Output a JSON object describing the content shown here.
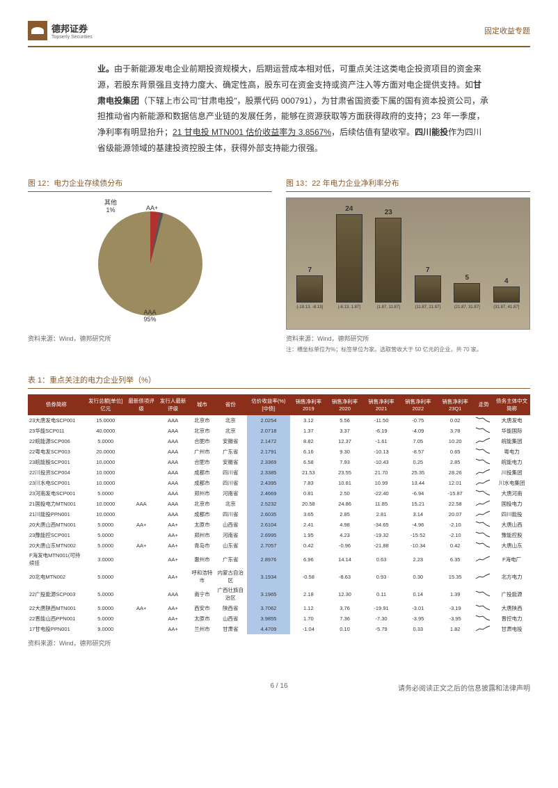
{
  "header": {
    "company_name": "德邦证券",
    "company_sub": "Topserly Securities",
    "doc_type": "固定收益专题"
  },
  "body": {
    "para1_prefix": "业。",
    "para1_text": "由于新能源发电企业前期投资规模大，后期运营成本相对低，可重点关注这类电企投资项目的资金来源，若股东背景强且支持力度大、确定性高，股东可在资金支持或资产注入等方面对电企提供支持。如",
    "para1_bold1": "甘肃电投集团",
    "para1_text2": "（下辖上市公司\"甘肃电投\"，股票代码 000791），为甘肃省国资委下属的国有资本投资公司，承担推动省内新能源和数据信息产业链的发展任务，能够在资源获取等方面获得政府的支持；23 年一季度，净利率有明显抬升；",
    "para1_underline": "21 甘电投 MTN001 估价收益率为 3.8567%",
    "para1_text3": "，后续估值有望收窄。",
    "para1_bold2": "四川能投",
    "para1_text4": "作为四川省级能源领域的基建投资控股主体，获得外部支持能力很强。"
  },
  "chart12": {
    "title": "图 12：电力企业存续债分布",
    "source": "资料来源：Wind，德邦研究所",
    "slices": [
      {
        "label": "AA+",
        "value": 3,
        "color": "#b0312e"
      },
      {
        "label": "其他",
        "value": 1,
        "color": "#555"
      },
      {
        "label": "AAA",
        "value": 95,
        "color": "#9b8b5e"
      }
    ]
  },
  "chart13": {
    "title": "图 13：22 年电力企业净利率分布",
    "source": "资料来源：Wind，德邦研究所",
    "note": "注：横坐标单位为%；标签单位为家。选取营收大于 50 亿元的企业，共 70 家。",
    "categories": [
      "(-18.13, -8.13]",
      "(-8.13, 1.87]",
      "(1.87, 11.87]",
      "(11.87, 21.87]",
      "(21.87, 31.87]",
      "(31.87, 41.87]"
    ],
    "values": [
      7,
      24,
      23,
      7,
      5,
      4
    ],
    "ymax": 25,
    "bar_color": "#4a3f28",
    "background_color": "#a89a7e"
  },
  "table1": {
    "title": "表 1：重点关注的电力企业列举（%）",
    "source": "资料来源：Wind，德邦研究所",
    "columns": [
      "债券简称",
      "发行总额[单位]亿元",
      "最新债项评级",
      "发行人最新评级",
      "城市",
      "省份",
      "估价收益率(%)[中债]",
      "销售净利率 2019",
      "销售净利率 2020",
      "销售净利率 2021",
      "销售净利率 2022",
      "销售净利率 23Q1",
      "走势",
      "债务主体中文简称"
    ],
    "rows": [
      [
        "23大唐发电SCP001",
        "15.0000",
        "",
        "AAA",
        "北京市",
        "北京",
        "2.0254",
        "3.12",
        "5.56",
        "-11.50",
        "-0.75",
        "0.02",
        "down",
        "大唐发电"
      ],
      [
        "23华能SCP011",
        "40.0000",
        "",
        "AAA",
        "北京市",
        "北京",
        "2.0718",
        "1.37",
        "3.37",
        "-6.19",
        "-4.09",
        "3.78",
        "down",
        "华能国际"
      ],
      [
        "22皖能源SCP006",
        "5.0000",
        "",
        "AAA",
        "合肥市",
        "安徽省",
        "2.1472",
        "8.82",
        "12.37",
        "-1.61",
        "7.05",
        "10.20",
        "up",
        "皖能集团"
      ],
      [
        "22粤电发SCP003",
        "20.0000",
        "",
        "AAA",
        "广州市",
        "广东省",
        "2.1791",
        "6.16",
        "9.30",
        "-10.13",
        "-8.57",
        "0.65",
        "down",
        "粤电力"
      ],
      [
        "23皖能股SCP001",
        "10.0000",
        "",
        "AAA",
        "合肥市",
        "安徽省",
        "2.3369",
        "6.58",
        "7.93",
        "-10.43",
        "0.25",
        "2.85",
        "down",
        "皖能电力"
      ],
      [
        "22川投资SCP004",
        "10.0000",
        "",
        "AAA",
        "成都市",
        "四川省",
        "2.3385",
        "21.53",
        "23.55",
        "21.70",
        "25.35",
        "28.26",
        "up",
        "川投集团"
      ],
      [
        "23川水电SCP001",
        "10.0000",
        "",
        "AAA",
        "成都市",
        "四川省",
        "2.4395",
        "7.83",
        "10.81",
        "10.99",
        "13.44",
        "12.01",
        "up",
        "川水电集团"
      ],
      [
        "23河南发电SCP001",
        "5.0000",
        "",
        "AAA",
        "郑州市",
        "河南省",
        "2.4669",
        "0.81",
        "2.50",
        "-22.40",
        "-6.94",
        "-15.87",
        "down",
        "大唐河南"
      ],
      [
        "21国投电力MTN001",
        "10.0000",
        "AAA",
        "AAA",
        "北京市",
        "北京",
        "2.5232",
        "20.58",
        "24.86",
        "11.85",
        "15.21",
        "22.58",
        "up",
        "国投电力"
      ],
      [
        "21川能投PPN001",
        "10.0000",
        "",
        "AAA",
        "成都市",
        "四川省",
        "2.6035",
        "3.65",
        "2.85",
        "2.81",
        "3.14",
        "20.07",
        "up",
        "四川能投"
      ],
      [
        "20大唐山西MTN001",
        "5.0000",
        "AA+",
        "AA+",
        "太原市",
        "山西省",
        "2.6104",
        "2.41",
        "4.98",
        "-34.65",
        "-4.96",
        "-2.10",
        "down",
        "大唐山西"
      ],
      [
        "23豫能控SCP001",
        "5.0000",
        "",
        "AA+",
        "郑州市",
        "河南省",
        "2.6995",
        "1.95",
        "4.23",
        "-19.32",
        "-15.52",
        "-2.10",
        "down",
        "豫能控股"
      ],
      [
        "20大唐山东MTN002",
        "5.0000",
        "AA+",
        "AA+",
        "青岛市",
        "山东省",
        "2.7057",
        "0.42",
        "-0.96",
        "-21.88",
        "-10.34",
        "0.42",
        "down",
        "大唐山东"
      ],
      [
        "F海发电MTN001(可持续挂",
        "3.0000",
        "",
        "AA+",
        "惠州市",
        "广东省",
        "2.8976",
        "6.96",
        "14.14",
        "0.63",
        "2.23",
        "6.35",
        "up",
        "F海电厂"
      ],
      [
        "20北电MTN002",
        "5.0000",
        "",
        "AA+",
        "呼和浩特市",
        "内蒙古自治区",
        "3.1934",
        "-0.58",
        "-8.63",
        "0.93",
        "0.30",
        "15.35",
        "up",
        "北方电力"
      ],
      [
        "22广投能源SCP003",
        "5.0000",
        "",
        "AAA",
        "南宁市",
        "广西壮族自治区",
        "3.1965",
        "2.18",
        "12.30",
        "0.11",
        "0.14",
        "1.39",
        "down",
        "广投能源"
      ],
      [
        "22大唐陕西MTN001",
        "5.0000",
        "AA+",
        "AA+",
        "西安市",
        "陕西省",
        "3.7062",
        "1.12",
        "3.76",
        "-19.91",
        "-3.01",
        "-3.19",
        "down",
        "大唐陕西"
      ],
      [
        "22晋能山西PPN001",
        "5.0000",
        "",
        "AA+",
        "太原市",
        "山西省",
        "3.9855",
        "1.70",
        "7.36",
        "-7.30",
        "-3.95",
        "-3.95",
        "down",
        "晋控电力"
      ],
      [
        "17甘电投PPN001",
        "9.0000",
        "",
        "AA+",
        "兰州市",
        "甘肃省",
        "4.4709",
        "-1.04",
        "0.10",
        "-5.79",
        "0.33",
        "1.82",
        "up",
        "甘肃电投"
      ]
    ]
  },
  "footer": {
    "page": "6 / 16",
    "disclaimer": "请务必阅读正文之后的信息披露和法律声明"
  }
}
